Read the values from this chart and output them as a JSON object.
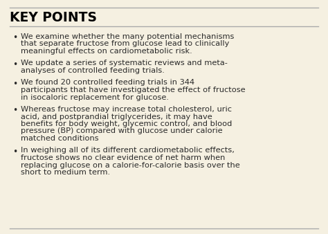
{
  "title": "KEY POINTS",
  "background_color": "#f5f0e1",
  "border_color": "#aaaaaa",
  "title_color": "#000000",
  "text_color": "#2a2a2a",
  "bullet_points": [
    "We examine whether the many potential mechanisms that separate fructose from glucose lead to clinically meaningful effects on cardiometabolic risk.",
    "We update a series of systematic reviews and meta-analyses of controlled feeding trials.",
    "We found 20 controlled feeding trials in 344 participants that have investigated the effect of fructose in isocaloric replacement for glucose.",
    "Whereas fructose may increase total cholesterol, uric acid, and postprandial triglycerides, it may have benefits for body weight, glycemic control, and blood pressure (BP) compared with glucose under calorie matched conditions",
    "In weighing all of its different cardiometabolic effects, fructose shows no clear evidence of net harm when replacing glucose on a calorie-for-calorie basis over the short to medium term."
  ],
  "bullet_lines": [
    [
      "We examine whether the many potential mechanisms",
      "that separate fructose from glucose lead to clinically",
      "meaningful effects on cardiometabolic risk."
    ],
    [
      "We update a series of systematic reviews and meta-",
      "analyses of controlled feeding trials."
    ],
    [
      "We found 20 controlled feeding trials in 344",
      "participants that have investigated the effect of fructose",
      "in isocaloric replacement for glucose."
    ],
    [
      "Whereas fructose may increase total cholesterol, uric",
      "acid, and postprandial triglycerides, it may have",
      "benefits for body weight, glycemic control, and blood",
      "pressure (BP) compared with glucose under calorie",
      "matched conditions"
    ],
    [
      "In weighing all of its different cardiometabolic effects,",
      "fructose shows no clear evidence of net harm when",
      "replacing glucose on a calorie-for-calorie basis over the",
      "short to medium term."
    ]
  ],
  "title_fontsize": 13.5,
  "body_fontsize": 8.2,
  "figsize": [
    4.74,
    3.38
  ],
  "dpi": 100
}
